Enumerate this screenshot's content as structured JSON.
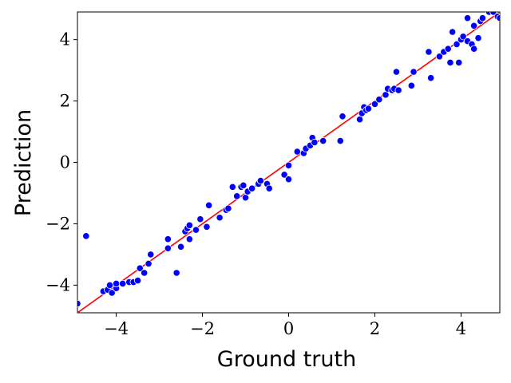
{
  "chart_data": {
    "type": "scatter",
    "title": "",
    "xlabel": "Ground truth",
    "ylabel": "Prediction",
    "xlim": [
      -4.9,
      4.9
    ],
    "ylim": [
      -4.9,
      4.9
    ],
    "xticks": [
      -4,
      -2,
      0,
      2,
      4
    ],
    "yticks": [
      -4,
      -2,
      0,
      2,
      4
    ],
    "xtick_labels": [
      "−4",
      "−2",
      "0",
      "2",
      "4"
    ],
    "ytick_labels": [
      "−4",
      "−2",
      "0",
      "2",
      "4"
    ],
    "grid": false,
    "point_color": "#0000ff",
    "line_color": "#ff0000",
    "reference_line": {
      "x": [
        -4.9,
        4.9
      ],
      "y": [
        -4.9,
        4.9
      ]
    },
    "points": [
      [
        -4.9,
        -4.6
      ],
      [
        -4.7,
        -2.4
      ],
      [
        -4.3,
        -4.2
      ],
      [
        -4.2,
        -4.15
      ],
      [
        -4.15,
        -4.0
      ],
      [
        -4.1,
        -4.25
      ],
      [
        -4.0,
        -4.1
      ],
      [
        -4.0,
        -3.95
      ],
      [
        -3.85,
        -3.95
      ],
      [
        -3.7,
        -3.9
      ],
      [
        -3.6,
        -3.9
      ],
      [
        -3.5,
        -3.85
      ],
      [
        -3.45,
        -3.45
      ],
      [
        -3.35,
        -3.6
      ],
      [
        -3.25,
        -3.3
      ],
      [
        -3.2,
        -3.0
      ],
      [
        -2.8,
        -2.5
      ],
      [
        -2.8,
        -2.8
      ],
      [
        -2.6,
        -3.6
      ],
      [
        -2.5,
        -2.75
      ],
      [
        -2.4,
        -2.25
      ],
      [
        -2.35,
        -2.15
      ],
      [
        -2.3,
        -2.05
      ],
      [
        -2.3,
        -2.5
      ],
      [
        -2.15,
        -2.2
      ],
      [
        -2.05,
        -1.85
      ],
      [
        -1.9,
        -2.1
      ],
      [
        -1.85,
        -1.4
      ],
      [
        -1.6,
        -1.8
      ],
      [
        -1.45,
        -1.55
      ],
      [
        -1.4,
        -1.5
      ],
      [
        -1.3,
        -0.8
      ],
      [
        -1.2,
        -1.1
      ],
      [
        -1.1,
        -0.8
      ],
      [
        -1.05,
        -0.75
      ],
      [
        -1.0,
        -1.15
      ],
      [
        -0.95,
        -0.95
      ],
      [
        -0.85,
        -0.85
      ],
      [
        -0.7,
        -0.7
      ],
      [
        -0.65,
        -0.6
      ],
      [
        -0.5,
        -0.7
      ],
      [
        -0.45,
        -0.85
      ],
      [
        -0.1,
        -0.4
      ],
      [
        0.0,
        -0.1
      ],
      [
        0.0,
        -0.55
      ],
      [
        0.2,
        0.35
      ],
      [
        0.35,
        0.3
      ],
      [
        0.4,
        0.45
      ],
      [
        0.5,
        0.55
      ],
      [
        0.55,
        0.8
      ],
      [
        0.6,
        0.65
      ],
      [
        0.8,
        0.7
      ],
      [
        1.2,
        0.7
      ],
      [
        1.25,
        1.5
      ],
      [
        1.65,
        1.4
      ],
      [
        1.7,
        1.6
      ],
      [
        1.75,
        1.8
      ],
      [
        1.8,
        1.7
      ],
      [
        1.85,
        1.75
      ],
      [
        2.0,
        1.9
      ],
      [
        2.1,
        2.05
      ],
      [
        2.25,
        2.2
      ],
      [
        2.3,
        2.4
      ],
      [
        2.4,
        2.35
      ],
      [
        2.45,
        2.4
      ],
      [
        2.5,
        2.95
      ],
      [
        2.55,
        2.35
      ],
      [
        2.85,
        2.5
      ],
      [
        2.9,
        2.95
      ],
      [
        3.25,
        3.6
      ],
      [
        3.3,
        2.75
      ],
      [
        3.5,
        3.45
      ],
      [
        3.6,
        3.6
      ],
      [
        3.7,
        3.7
      ],
      [
        3.75,
        3.25
      ],
      [
        3.8,
        4.25
      ],
      [
        3.9,
        3.85
      ],
      [
        3.95,
        3.25
      ],
      [
        4.0,
        4.0
      ],
      [
        4.05,
        4.1
      ],
      [
        4.15,
        3.95
      ],
      [
        4.15,
        4.7
      ],
      [
        4.25,
        3.85
      ],
      [
        4.3,
        3.7
      ],
      [
        4.3,
        4.45
      ],
      [
        4.4,
        4.05
      ],
      [
        4.45,
        4.6
      ],
      [
        4.5,
        4.7
      ],
      [
        4.65,
        4.9
      ],
      [
        4.75,
        4.9
      ],
      [
        4.85,
        4.75
      ],
      [
        4.9,
        4.7
      ]
    ]
  }
}
